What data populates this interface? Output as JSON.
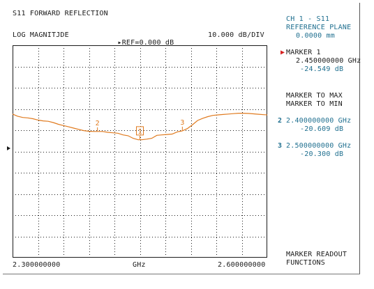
{
  "header": {
    "title": "S11 FORWARD REFLECTION",
    "format": "LOG MAGNITJDE",
    "ref_marker_glyph": "▸",
    "ref_label": "REF=0.000 dB",
    "scale": "10.000 dB/DIV"
  },
  "side_panel": {
    "channel": "CH 1 - S11",
    "ref_plane_label": "REFERENCE PLANE",
    "ref_plane_value": "0.0000 mm",
    "active_marker_glyph": "▶",
    "marker1_label": "MARKER 1",
    "marker1_freq": "2.450000000 GHz",
    "marker1_value": "-24.549 dB",
    "menu_max": "MARKER TO MAX",
    "menu_min": "MARKER TO MIN",
    "marker2_num": "2",
    "marker2_freq": "2.400000000 GHz",
    "marker2_value": "-20.609 dB",
    "marker3_num": "3",
    "marker3_freq": "2.500000000 GHz",
    "marker3_value": "-20.300 dB",
    "menu_readout_1": "MARKER READOUT",
    "menu_readout_2": "FUNCTIONS"
  },
  "footer": {
    "start": "2.300000000",
    "unit": "GHz",
    "stop": "2.600000000"
  },
  "colors": {
    "trace": "#e07a1e",
    "grid": "#1a1a1a",
    "text": "#1a1a1a",
    "panel_text": "#1f6f8f",
    "active_marker": "#d62020"
  },
  "chart_data": {
    "type": "line",
    "title": "S11 FORWARD REFLECTION",
    "xlabel": "GHz",
    "ylabel": "",
    "xlim": [
      2.3,
      2.6
    ],
    "ylim": [
      -80,
      20
    ],
    "grid": true,
    "x_divisions": 10,
    "y_divisions": 10,
    "series": [
      {
        "x": [
          2.3,
          2.306,
          2.312,
          2.318,
          2.324,
          2.33,
          2.336,
          2.342,
          2.348,
          2.354,
          2.36,
          2.366,
          2.372,
          2.378,
          2.384,
          2.39,
          2.396,
          2.4,
          2.406,
          2.412,
          2.418,
          2.424,
          2.43,
          2.436,
          2.442,
          2.448,
          2.452,
          2.458,
          2.464,
          2.47,
          2.476,
          2.482,
          2.488,
          2.494,
          2.5,
          2.506,
          2.512,
          2.518,
          2.524,
          2.53,
          2.536,
          2.542,
          2.548,
          2.554,
          2.56,
          2.566,
          2.572,
          2.578,
          2.584,
          2.59,
          2.596,
          2.6
        ],
        "y": [
          -12.4,
          -13.4,
          -14.0,
          -14.2,
          -14.6,
          -15.2,
          -15.6,
          -15.8,
          -16.4,
          -17.2,
          -17.8,
          -18.4,
          -19.0,
          -19.6,
          -20.2,
          -20.5,
          -20.6,
          -20.6,
          -20.6,
          -21.0,
          -21.2,
          -21.4,
          -22.2,
          -22.6,
          -23.8,
          -24.5,
          -24.5,
          -24.2,
          -23.8,
          -22.4,
          -22.2,
          -22.0,
          -21.8,
          -20.8,
          -20.3,
          -19.2,
          -17.4,
          -15.4,
          -14.4,
          -13.6,
          -13.0,
          -12.8,
          -12.6,
          -12.4,
          -12.2,
          -12.0,
          -12.0,
          -12.1,
          -12.3,
          -12.5,
          -12.7,
          -12.8
        ]
      }
    ],
    "markers": [
      {
        "label": "2",
        "x": 2.4,
        "y": -20.609,
        "active": false
      },
      {
        "label": "1",
        "x": 2.45,
        "y": -24.549,
        "active": true
      },
      {
        "label": "3",
        "x": 2.5,
        "y": -20.3,
        "active": false
      }
    ],
    "reference_level": 0.0
  }
}
